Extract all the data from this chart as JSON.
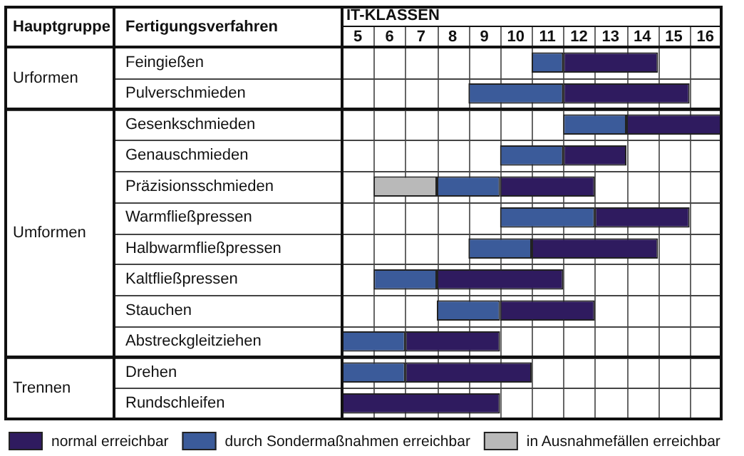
{
  "chart_data": {
    "type": "bar",
    "orientation": "horizontal",
    "xlabel": "IT-KLASSEN",
    "ylabel": "Fertigungsverfahren",
    "categories": [
      "Feingießen",
      "Pulverschmieden",
      "Gesenkschmieden",
      "Genauschmieden",
      "Präzisionsschmieden",
      "Warmfließpressen",
      "Halbwarmfließpressen",
      "Kaltfließpressen",
      "Stauchen",
      "Abstreckgleitziehen",
      "Drehen",
      "Rundschleifen"
    ],
    "series": [
      {
        "name": "in Ausnahmefällen erreichbar",
        "color": "#b9b9b9",
        "base": [
          null,
          null,
          null,
          null,
          6,
          null,
          null,
          null,
          null,
          null,
          null,
          null
        ],
        "values": [
          null,
          null,
          null,
          null,
          2,
          null,
          null,
          null,
          null,
          null,
          null,
          null
        ]
      },
      {
        "name": "durch Sondermaßnahmen erreichbar",
        "color": "#3b5b9a",
        "base": [
          11,
          9,
          12,
          10,
          8,
          10,
          9,
          6,
          8,
          5,
          5,
          null
        ],
        "values": [
          1,
          3,
          2,
          2,
          2,
          3,
          2,
          2,
          2,
          2,
          2,
          null
        ]
      },
      {
        "name": "normal erreichbar",
        "color": "#2f1b5f",
        "base": [
          12,
          12,
          14,
          12,
          10,
          13,
          11,
          8,
          10,
          7,
          7,
          5
        ],
        "values": [
          3,
          4,
          3,
          2,
          3,
          3,
          4,
          4,
          3,
          3,
          4,
          5
        ]
      }
    ],
    "xlim": [
      5,
      17
    ],
    "xticks": [
      {
        "value": 5,
        "label": null
      },
      {
        "value": 5.5,
        "label": "5"
      },
      {
        "value": 6,
        "label": null
      },
      {
        "value": 6.5,
        "label": "6"
      },
      {
        "value": 7,
        "label": null
      },
      {
        "value": 7.5,
        "label": "7"
      },
      {
        "value": 8,
        "label": null
      },
      {
        "value": 8.5,
        "label": "8"
      },
      {
        "value": 9,
        "label": null
      },
      {
        "value": 9.5,
        "label": "9"
      },
      {
        "value": 10,
        "label": null
      },
      {
        "value": 10.5,
        "label": "10"
      },
      {
        "value": 11,
        "label": null
      },
      {
        "value": 11.5,
        "label": "11"
      },
      {
        "value": 12,
        "label": null
      },
      {
        "value": 12.5,
        "label": "12"
      },
      {
        "value": 13,
        "label": null
      },
      {
        "value": 13.5,
        "label": "13"
      },
      {
        "value": 14,
        "label": null
      },
      {
        "value": 14.5,
        "label": "14"
      },
      {
        "value": 15,
        "label": null
      },
      {
        "value": 15.5,
        "label": "15"
      },
      {
        "value": 16,
        "label": null
      },
      {
        "value": 16.5,
        "label": "16"
      },
      {
        "value": 17,
        "label": null
      }
    ],
    "grid": true,
    "legend": "bottom",
    "annotations": [
      "Hauptgruppe",
      "Urformen",
      "Umformen",
      "Trennen"
    ]
  }
}
